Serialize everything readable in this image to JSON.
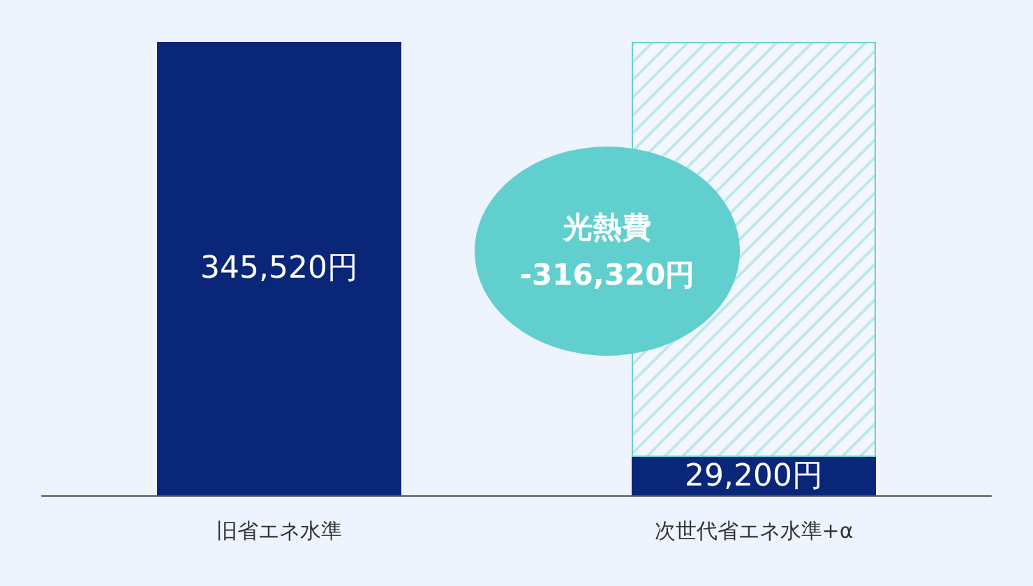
{
  "chart_data": {
    "type": "bar",
    "stacked": true,
    "categories": [
      "旧省エネ水準",
      "次世代省エネ水準+α"
    ],
    "series": [
      {
        "color": "#0a2679",
        "values": [
          345520,
          29200
        ],
        "value_labels": [
          "345,520円",
          "29,200円"
        ]
      },
      {
        "color": "#6ccfcf",
        "values": [
          null,
          316320
        ]
      }
    ],
    "annotations": [
      "光熱費\n-316,320円"
    ],
    "grid": false
  }
}
